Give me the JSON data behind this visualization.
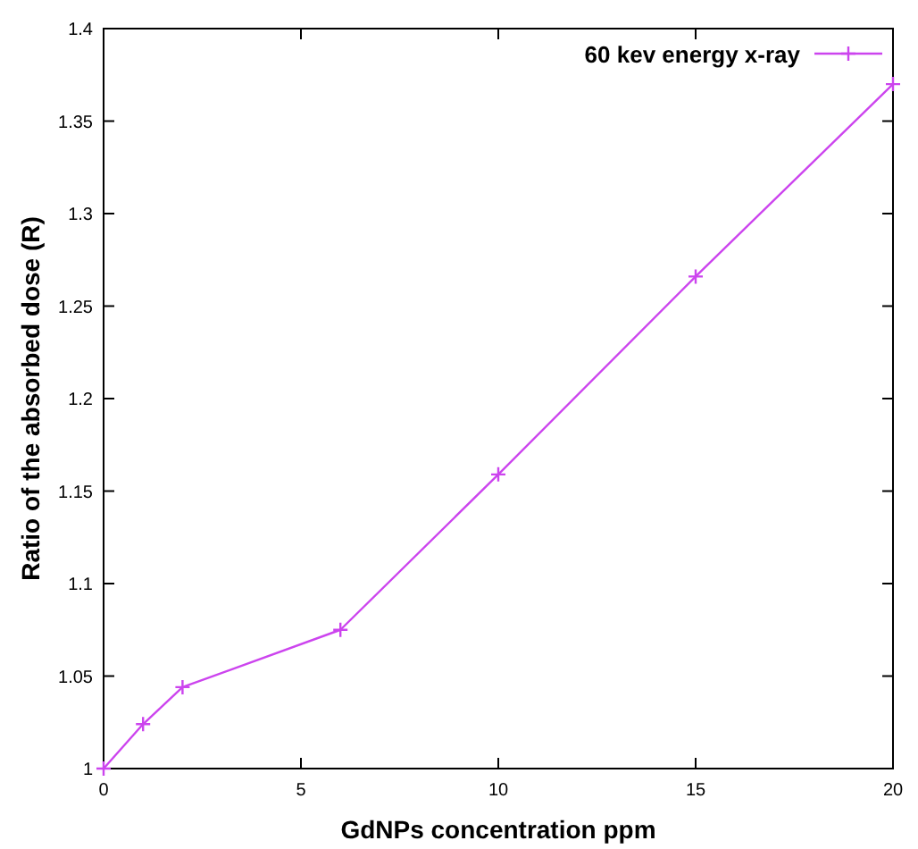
{
  "chart_data": {
    "type": "line",
    "xlabel": "GdNPs concentration ppm",
    "ylabel": "Ratio of the absorbed dose (R)",
    "x": [
      0,
      1,
      2,
      6,
      10,
      15,
      20
    ],
    "series": [
      {
        "name": "60 kev energy x-ray",
        "color": "#cc44ee",
        "values": [
          1,
          1.024,
          1.044,
          1.075,
          1.159,
          1.266,
          1.37
        ]
      }
    ],
    "xlim": [
      0,
      20
    ],
    "xticks": [
      0,
      5,
      10,
      15,
      20
    ],
    "ylim": [
      1,
      1.4
    ],
    "yticks": [
      1,
      1.05,
      1.1,
      1.15,
      1.2,
      1.25,
      1.3,
      1.35,
      1.4
    ],
    "grid": false,
    "legend": "top right",
    "marker": "cross",
    "line_style": "solid"
  }
}
